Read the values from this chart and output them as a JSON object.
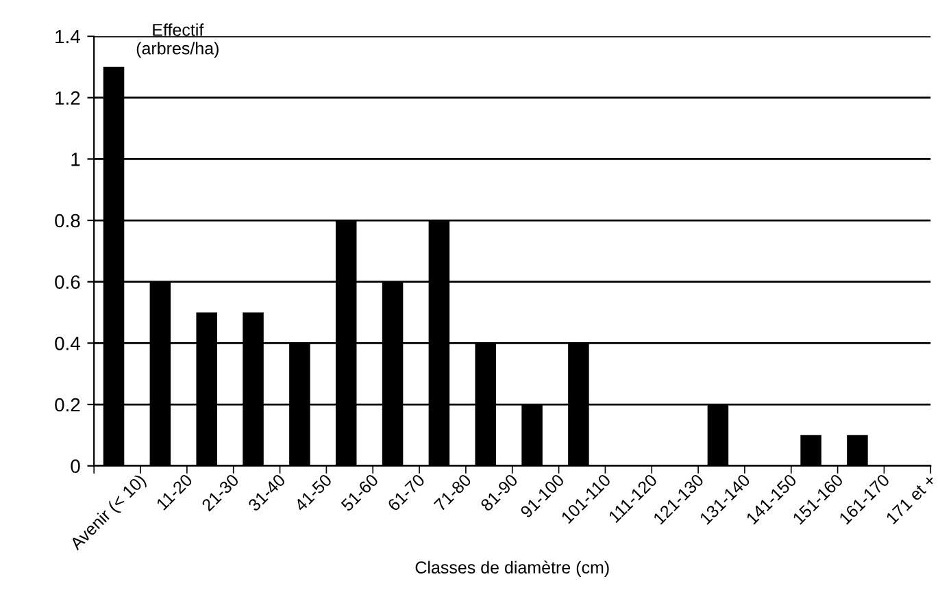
{
  "chart_data": {
    "type": "bar",
    "ylabel": "Effectif\n(arbres/ha)",
    "xlabel": "Classes de diamètre (cm)",
    "categories": [
      "Avenir (< 10)",
      "11-20",
      "21-30",
      "31-40",
      "41-50",
      "51-60",
      "61-70",
      "71-80",
      "81-90",
      "91-100",
      "101-110",
      "111-120",
      "121-130",
      "131-140",
      "141-150",
      "151-160",
      "161-170",
      "171 et +"
    ],
    "values": [
      1.3,
      0.6,
      0.5,
      0.5,
      0.4,
      0.8,
      0.6,
      0.8,
      0.4,
      0.2,
      0.4,
      0,
      0,
      0.2,
      0,
      0.1,
      0.1,
      0
    ],
    "color": "#000000",
    "ylim": [
      0,
      1.4
    ],
    "yticks": [
      0,
      0.2,
      0.4,
      0.6,
      0.8,
      1,
      1.2,
      1.4
    ],
    "grid": "y"
  }
}
